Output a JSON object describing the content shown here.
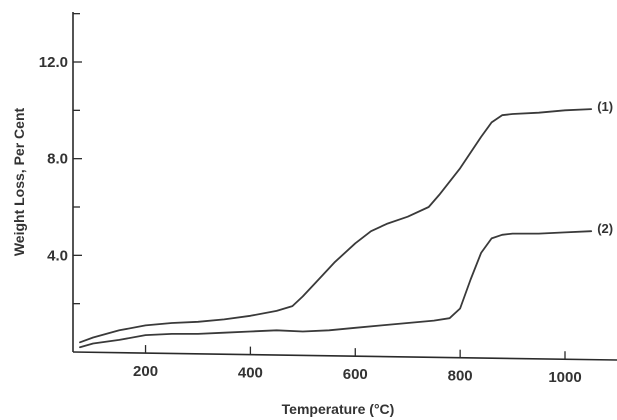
{
  "chart_data": {
    "type": "line",
    "xlabel": "Temperature (°C)",
    "ylabel": "Weight Loss, Per Cent",
    "xlim": [
      0,
      1100
    ],
    "ylim": [
      0,
      14
    ],
    "x_ticks": [
      200,
      400,
      600,
      800,
      1000
    ],
    "y_ticks": [
      4.0,
      8.0,
      12.0
    ],
    "y_minor_ticks": [
      2,
      6,
      10,
      14
    ],
    "grid": false,
    "legend": "none",
    "series": [
      {
        "name": "(1)",
        "x": [
          75,
          100,
          150,
          200,
          250,
          300,
          350,
          400,
          450,
          480,
          500,
          530,
          560,
          600,
          630,
          660,
          700,
          740,
          760,
          800,
          840,
          860,
          880,
          900,
          950,
          1000,
          1050
        ],
        "y": [
          0.4,
          0.6,
          0.9,
          1.1,
          1.2,
          1.25,
          1.35,
          1.5,
          1.7,
          1.9,
          2.3,
          3.0,
          3.7,
          4.5,
          5.0,
          5.3,
          5.6,
          6.0,
          6.5,
          7.6,
          8.9,
          9.5,
          9.8,
          9.85,
          9.9,
          10.0,
          10.05
        ],
        "label_text": "(1)"
      },
      {
        "name": "(2)",
        "x": [
          75,
          100,
          150,
          200,
          250,
          300,
          350,
          400,
          450,
          500,
          550,
          600,
          650,
          700,
          750,
          780,
          800,
          820,
          840,
          860,
          880,
          900,
          950,
          1000,
          1050
        ],
        "y": [
          0.2,
          0.35,
          0.5,
          0.7,
          0.75,
          0.75,
          0.8,
          0.85,
          0.9,
          0.85,
          0.9,
          1.0,
          1.1,
          1.2,
          1.3,
          1.4,
          1.8,
          3.0,
          4.1,
          4.7,
          4.85,
          4.9,
          4.9,
          4.95,
          5.0
        ],
        "label_text": "(2)"
      }
    ]
  }
}
